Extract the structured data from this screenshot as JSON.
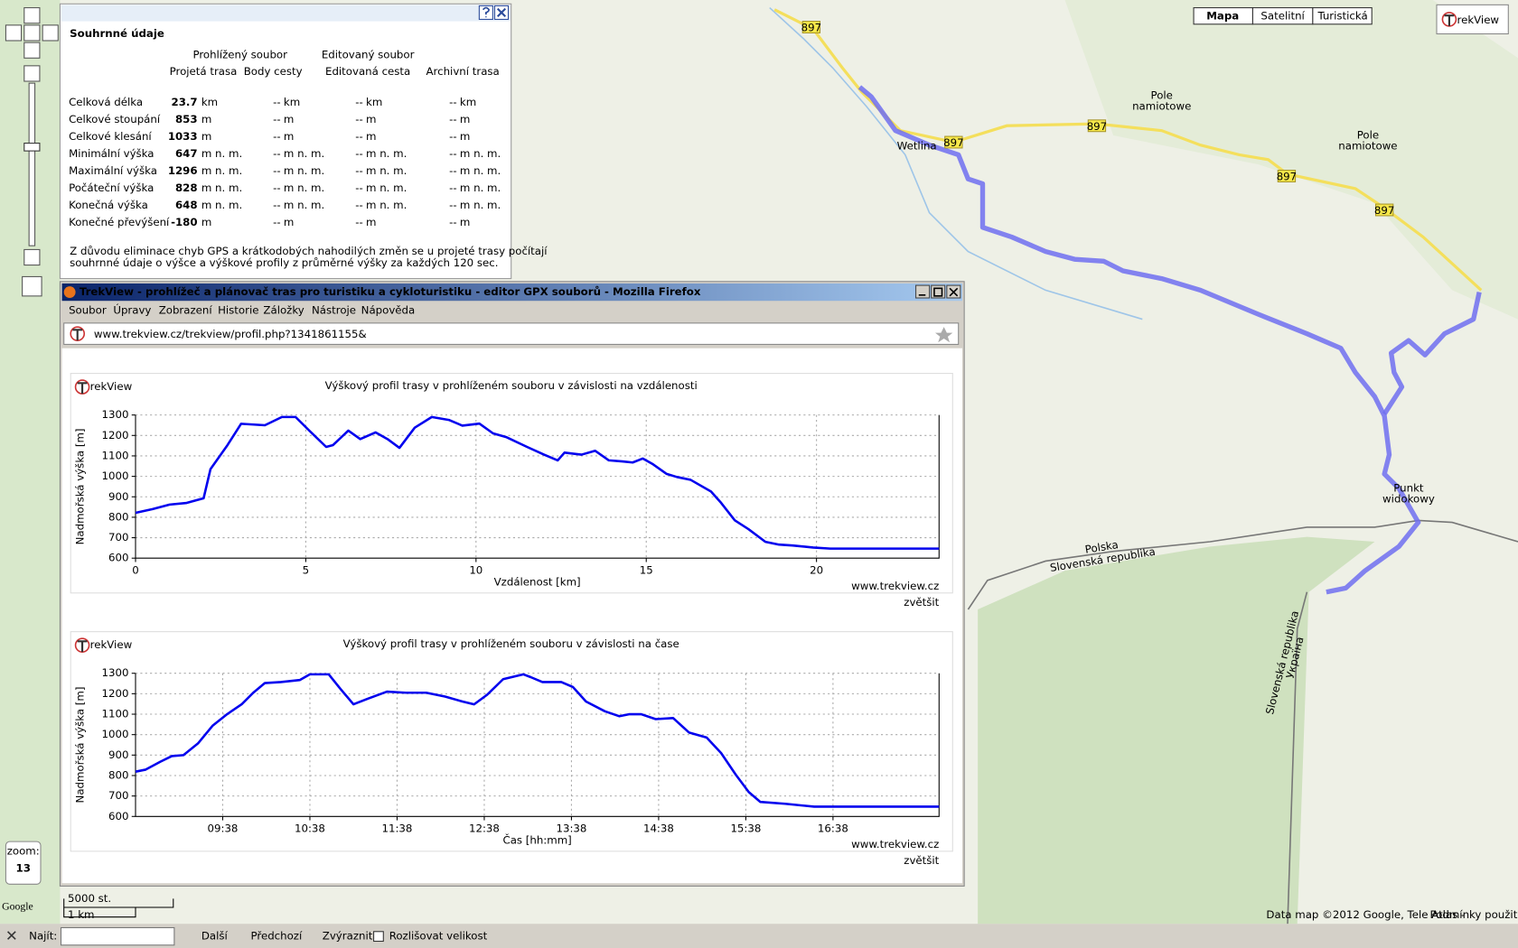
{
  "map": {
    "type_buttons": [
      "Mapa",
      "Satelitní",
      "Turistická"
    ],
    "logo": "rekView",
    "road_numbers": [
      "897",
      "897",
      "897",
      "897",
      "897"
    ],
    "labels": [
      {
        "lines": [
          "Pole",
          "namiotowe"
        ]
      },
      {
        "lines": [
          "Pole",
          "namiotowe"
        ]
      },
      {
        "lines": [
          "Wetlina"
        ]
      },
      {
        "lines": [
          "Punkt",
          "widokowy"
        ]
      },
      {
        "lines": [
          "Polska"
        ]
      },
      {
        "lines": [
          "Slovenská republika"
        ]
      },
      {
        "lines": [
          "Slovenská republika"
        ]
      },
      {
        "lines": [
          "Україна"
        ]
      }
    ],
    "zoom_label": "zoom:",
    "zoom": 13,
    "google": "Google",
    "scale": [
      "5000 st.",
      "1 km"
    ],
    "attribution": "Data map ©2012 Google, Tele Atlas -",
    "terms": "Podmínky použití"
  },
  "summary": {
    "title": "Souhrnné údaje",
    "groups": [
      "Prohlížený soubor",
      "Editovaný soubor"
    ],
    "columns": [
      "Projetá trasa",
      "Body cesty",
      "Editovaná cesta",
      "Archivní trasa"
    ],
    "rows": [
      {
        "label": "Celková délka",
        "values": [
          23.7,
          "--",
          "--",
          "--"
        ],
        "unit": "km"
      },
      {
        "label": "Celkové stoupání",
        "values": [
          853,
          "--",
          "--",
          "--"
        ],
        "unit": "m"
      },
      {
        "label": "Celkové klesání",
        "values": [
          1033,
          "--",
          "--",
          "--"
        ],
        "unit": "m"
      },
      {
        "label": "Minimální výška",
        "values": [
          647,
          "--",
          "--",
          "--"
        ],
        "unit": "m n. m."
      },
      {
        "label": "Maximální výška",
        "values": [
          1296,
          "--",
          "--",
          "--"
        ],
        "unit": "m n. m."
      },
      {
        "label": "Počáteční výška",
        "values": [
          828,
          "--",
          "--",
          "--"
        ],
        "unit": "m n. m."
      },
      {
        "label": "Konečná výška",
        "values": [
          648,
          "--",
          "--",
          "--"
        ],
        "unit": "m n. m."
      },
      {
        "label": "Konečné převýšení",
        "values": [
          -180,
          "--",
          "--",
          "--"
        ],
        "unit": "m"
      }
    ],
    "note": [
      "Z důvodu eliminace chyb GPS a krátkodobých nahodilých změn se u projeté trasy počítají",
      "souhrnné údaje o výšce a výškové profily z průměrné výšky za každých 120 sec."
    ]
  },
  "browser": {
    "title": "TrekView - prohlížeč a plánovač tras pro turistiku a cykloturistiku - editor GPX souborů - Mozilla Firefox",
    "menu": [
      "Soubor",
      "Úpravy",
      "Zobrazení",
      "Historie",
      "Záložky",
      "Nástroje",
      "Nápověda"
    ],
    "url": "www.trekview.cz/trekview/profil.php?1341861155&"
  },
  "profiles": [
    {
      "type": "line",
      "logo": "rekView",
      "title": "Výškový profil trasy v prohlíženém souboru v závislosti na vzdálenosti",
      "x_label": "Vzdálenost [km]",
      "y_label": "Nadmořská výška [m]",
      "source": "www.trekview.cz",
      "link": "zvětšit",
      "color": "#0000ee",
      "grid": true,
      "xlim": [
        0,
        23.6
      ],
      "ylim": [
        600,
        1300
      ],
      "xticks": [
        0,
        5,
        10,
        15,
        20
      ],
      "yticks": [
        600,
        700,
        800,
        900,
        1000,
        1100,
        1200,
        1300
      ],
      "x": [
        0,
        0.5,
        1,
        1.5,
        2,
        2.2,
        2.7,
        3.1,
        3.8,
        4.3,
        4.7,
        5.1,
        5.6,
        5.8,
        6.25,
        6.6,
        7.05,
        7.4,
        7.75,
        8.2,
        8.7,
        9.2,
        9.6,
        10.1,
        10.5,
        10.9,
        11.5,
        12,
        12.4,
        12.6,
        13.1,
        13.5,
        13.9,
        14.3,
        14.6,
        14.9,
        15.2,
        15.6,
        15.9,
        16.3,
        16.9,
        17.2,
        17.6,
        18,
        18.5,
        18.9,
        19.3,
        19.9,
        20.4,
        23.6
      ],
      "values": [
        822,
        840,
        862,
        870,
        893,
        1035,
        1153,
        1257,
        1250,
        1290,
        1290,
        1224,
        1144,
        1153,
        1224,
        1182,
        1215,
        1182,
        1139,
        1238,
        1290,
        1276,
        1248,
        1258,
        1210,
        1191,
        1144,
        1106,
        1078,
        1116,
        1106,
        1125,
        1078,
        1073,
        1068,
        1087,
        1059,
        1012,
        997,
        983,
        926,
        870,
        785,
        742,
        680,
        666,
        662,
        652,
        647,
        647
      ]
    },
    {
      "type": "line",
      "logo": "rekView",
      "title": "Výškový profil trasy v prohlíženém souboru v závislosti na čase",
      "x_label": "Čas [hh:mm]",
      "y_label": "Nadmořská výška [m]",
      "source": "www.trekview.cz",
      "link": "zvětšit",
      "color": "#0000ee",
      "grid": true,
      "xlim": [
        "08:38",
        "17:51"
      ],
      "ylim": [
        600,
        1300
      ],
      "xticks": [
        "09:38",
        "10:38",
        "11:38",
        "12:38",
        "13:38",
        "14:38",
        "15:38",
        "16:38"
      ],
      "yticks": [
        600,
        700,
        800,
        900,
        1000,
        1100,
        1200,
        1300
      ],
      "x": [
        "08:38",
        "08:45",
        "08:55",
        "09:03",
        "09:11",
        "09:21",
        "09:31",
        "09:41",
        "09:51",
        "09:59",
        "10:07",
        "10:18",
        "10:31",
        "10:38",
        "10:51",
        "10:59",
        "11:08",
        "11:18",
        "11:31",
        "11:44",
        "11:58",
        "12:11",
        "12:23",
        "12:31",
        "12:40",
        "12:51",
        "13:05",
        "13:10",
        "13:18",
        "13:31",
        "13:39",
        "13:48",
        "14:01",
        "14:11",
        "14:18",
        "14:26",
        "14:36",
        "14:48",
        "14:59",
        "15:11",
        "15:21",
        "15:31",
        "15:40",
        "15:48",
        "16:05",
        "16:25",
        "17:51"
      ],
      "values": [
        819,
        829,
        867,
        895,
        900,
        957,
        1043,
        1100,
        1148,
        1205,
        1252,
        1257,
        1267,
        1295,
        1295,
        1224,
        1148,
        1176,
        1210,
        1205,
        1205,
        1186,
        1162,
        1148,
        1195,
        1271,
        1295,
        1281,
        1257,
        1257,
        1233,
        1162,
        1114,
        1090,
        1100,
        1100,
        1076,
        1081,
        1010,
        986,
        910,
        805,
        719,
        671,
        662,
        648,
        648
      ]
    }
  ],
  "find_bar": {
    "label": "Najít:",
    "buttons": [
      "Další",
      "Předchozí",
      "Zvýraznit"
    ],
    "checkbox": "Rozlišovat velikost"
  }
}
